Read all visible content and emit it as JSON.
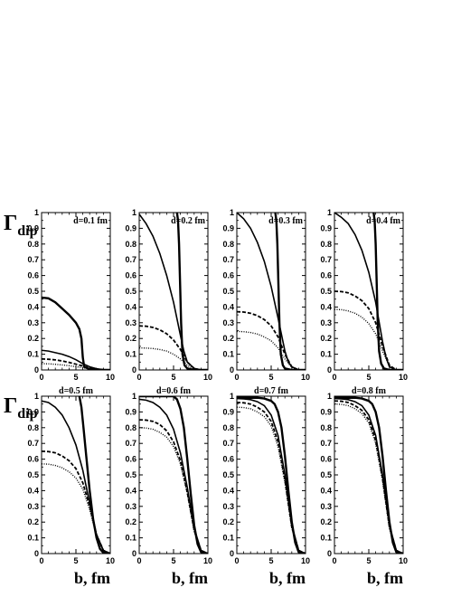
{
  "figure": {
    "ylabel_symbol": "Γ",
    "ylabel_subscript": "dip",
    "xlabel": "b, fm"
  },
  "chart_data": [
    {
      "type": "line",
      "title": "d=0.1 fm",
      "xlim": [
        0,
        10
      ],
      "ylim": [
        0,
        1
      ],
      "xticks": [
        "0",
        "5",
        "10"
      ],
      "yticks": [
        "0",
        "0.1",
        "0.2",
        "0.3",
        "0.4",
        "0.5",
        "0.6",
        "0.7",
        "0.8",
        "0.9",
        "1"
      ],
      "series": [
        {
          "style": "thick-solid",
          "x": [
            0,
            1,
            2,
            3,
            4,
            5,
            5.5,
            5.8,
            6.0,
            6.2,
            7,
            8,
            10
          ],
          "y": [
            0.46,
            0.455,
            0.43,
            0.39,
            0.35,
            0.3,
            0.26,
            0.2,
            0.08,
            0.02,
            0.005,
            0.0,
            0.0
          ]
        },
        {
          "style": "solid",
          "x": [
            0,
            1,
            2,
            3,
            4,
            5,
            6,
            7,
            8,
            9,
            10
          ],
          "y": [
            0.125,
            0.12,
            0.11,
            0.1,
            0.085,
            0.065,
            0.04,
            0.02,
            0.008,
            0.002,
            0.0
          ]
        },
        {
          "style": "dashed",
          "x": [
            0,
            1,
            2,
            3,
            4,
            5,
            6,
            7,
            8,
            9,
            10
          ],
          "y": [
            0.07,
            0.068,
            0.064,
            0.057,
            0.048,
            0.037,
            0.025,
            0.013,
            0.005,
            0.001,
            0.0
          ]
        },
        {
          "style": "dotted",
          "x": [
            0,
            1,
            2,
            3,
            4,
            5,
            6,
            7,
            8,
            9,
            10
          ],
          "y": [
            0.04,
            0.039,
            0.036,
            0.032,
            0.027,
            0.021,
            0.014,
            0.008,
            0.003,
            0.001,
            0.0
          ]
        }
      ]
    },
    {
      "type": "line",
      "title": "d=0.2 fm",
      "xlim": [
        0,
        10
      ],
      "ylim": [
        0,
        1
      ],
      "xticks": [
        "0",
        "5",
        "10"
      ],
      "yticks": [
        "0",
        "0.1",
        "0.2",
        "0.3",
        "0.4",
        "0.5",
        "0.6",
        "0.7",
        "0.8",
        "0.9",
        "1"
      ],
      "series": [
        {
          "style": "thick-solid",
          "x": [
            5.5,
            5.65,
            5.8,
            5.95,
            6.1,
            6.3,
            6.6,
            7,
            8,
            10
          ],
          "y": [
            1.0,
            0.95,
            0.8,
            0.55,
            0.3,
            0.1,
            0.03,
            0.01,
            0.0,
            0.0
          ]
        },
        {
          "style": "solid",
          "x": [
            0,
            1,
            2,
            3,
            4,
            5,
            6,
            6.5,
            7,
            8,
            9,
            10
          ],
          "y": [
            0.99,
            0.93,
            0.85,
            0.74,
            0.6,
            0.43,
            0.22,
            0.12,
            0.05,
            0.01,
            0.0,
            0.0
          ]
        },
        {
          "style": "dashed",
          "x": [
            0,
            1,
            2,
            3,
            4,
            5,
            6,
            7,
            8,
            9,
            10
          ],
          "y": [
            0.28,
            0.278,
            0.27,
            0.255,
            0.23,
            0.19,
            0.13,
            0.05,
            0.01,
            0.0,
            0.0
          ]
        },
        {
          "style": "dotted",
          "x": [
            0,
            1,
            2,
            3,
            4,
            5,
            6,
            7,
            8,
            9,
            10
          ],
          "y": [
            0.14,
            0.139,
            0.136,
            0.13,
            0.12,
            0.1,
            0.07,
            0.03,
            0.005,
            0.0,
            0.0
          ]
        }
      ]
    },
    {
      "type": "line",
      "title": "d=0.3 fm",
      "xlim": [
        0,
        10
      ],
      "ylim": [
        0,
        1
      ],
      "xticks": [
        "0",
        "5",
        "10"
      ],
      "yticks": [
        "0",
        "0.1",
        "0.2",
        "0.3",
        "0.4",
        "0.5",
        "0.6",
        "0.7",
        "0.8",
        "0.9",
        "1"
      ],
      "series": [
        {
          "style": "thick-solid",
          "x": [
            5.6,
            5.75,
            5.9,
            6.05,
            6.2,
            6.4,
            6.7,
            7,
            8,
            10
          ],
          "y": [
            1.0,
            0.95,
            0.8,
            0.55,
            0.3,
            0.1,
            0.03,
            0.01,
            0.0,
            0.0
          ]
        },
        {
          "style": "solid",
          "x": [
            0,
            1,
            2,
            3,
            4,
            5,
            6,
            7,
            7.5,
            8,
            9,
            10
          ],
          "y": [
            1.0,
            0.96,
            0.9,
            0.81,
            0.69,
            0.53,
            0.33,
            0.12,
            0.05,
            0.02,
            0.0,
            0.0
          ]
        },
        {
          "style": "dashed",
          "x": [
            0,
            1,
            2,
            3,
            4,
            5,
            6,
            7,
            8,
            9,
            10
          ],
          "y": [
            0.37,
            0.368,
            0.36,
            0.345,
            0.32,
            0.28,
            0.21,
            0.1,
            0.02,
            0.0,
            0.0
          ]
        },
        {
          "style": "dotted",
          "x": [
            0,
            1,
            2,
            3,
            4,
            5,
            6,
            7,
            8,
            9,
            10
          ],
          "y": [
            0.245,
            0.243,
            0.238,
            0.228,
            0.21,
            0.185,
            0.14,
            0.07,
            0.015,
            0.0,
            0.0
          ]
        }
      ]
    },
    {
      "type": "line",
      "title": "d=0.4 fm",
      "xlim": [
        0,
        10
      ],
      "ylim": [
        0,
        1
      ],
      "xticks": [
        "0",
        "5",
        "10"
      ],
      "yticks": [
        "0",
        "0.1",
        "0.2",
        "0.3",
        "0.4",
        "0.5",
        "0.6",
        "0.7",
        "0.8",
        "0.9",
        "1"
      ],
      "series": [
        {
          "style": "thick-solid",
          "x": [
            5.7,
            5.85,
            6.0,
            6.15,
            6.3,
            6.5,
            6.8,
            7.2,
            8,
            10
          ],
          "y": [
            1.0,
            0.95,
            0.8,
            0.55,
            0.3,
            0.12,
            0.04,
            0.01,
            0.0,
            0.0
          ]
        },
        {
          "style": "solid",
          "x": [
            0,
            1,
            2,
            3,
            4,
            5,
            6,
            7,
            7.5,
            8,
            9,
            10
          ],
          "y": [
            1.0,
            0.97,
            0.93,
            0.86,
            0.76,
            0.62,
            0.43,
            0.18,
            0.08,
            0.02,
            0.0,
            0.0
          ]
        },
        {
          "style": "dashed",
          "x": [
            0,
            1,
            2,
            3,
            4,
            5,
            6,
            7,
            8,
            9,
            10
          ],
          "y": [
            0.5,
            0.498,
            0.49,
            0.47,
            0.44,
            0.39,
            0.3,
            0.15,
            0.03,
            0.0,
            0.0
          ]
        },
        {
          "style": "dotted",
          "x": [
            0,
            1,
            2,
            3,
            4,
            5,
            6,
            7,
            8,
            9,
            10
          ],
          "y": [
            0.385,
            0.383,
            0.375,
            0.36,
            0.335,
            0.295,
            0.23,
            0.12,
            0.025,
            0.0,
            0.0
          ]
        }
      ]
    },
    {
      "type": "line",
      "title": "d=0.5 fm",
      "xlim": [
        0,
        10
      ],
      "ylim": [
        0,
        1
      ],
      "xticks": [
        "0",
        "5",
        "10"
      ],
      "yticks": [
        "0",
        "0.1",
        "0.2",
        "0.3",
        "0.4",
        "0.5",
        "0.6",
        "0.7",
        "0.8",
        "0.9",
        "1"
      ],
      "series": [
        {
          "style": "thick-solid",
          "x": [
            5.5,
            5.8,
            6.1,
            6.5,
            7.0,
            7.5,
            8.0,
            8.5,
            9.0,
            10
          ],
          "y": [
            1.0,
            0.93,
            0.8,
            0.62,
            0.4,
            0.22,
            0.1,
            0.03,
            0.005,
            0.0
          ]
        },
        {
          "style": "solid",
          "x": [
            0,
            1,
            2,
            3,
            4,
            5,
            6,
            7,
            8,
            9,
            10
          ],
          "y": [
            0.97,
            0.96,
            0.93,
            0.88,
            0.8,
            0.69,
            0.53,
            0.32,
            0.12,
            0.02,
            0.0
          ]
        },
        {
          "style": "dashed",
          "x": [
            0,
            1,
            2,
            3,
            4,
            5,
            6,
            7,
            8,
            9,
            10
          ],
          "y": [
            0.65,
            0.648,
            0.64,
            0.62,
            0.59,
            0.54,
            0.45,
            0.3,
            0.12,
            0.02,
            0.0
          ]
        },
        {
          "style": "dotted",
          "x": [
            0,
            1,
            2,
            3,
            4,
            5,
            6,
            7,
            8,
            9,
            10
          ],
          "y": [
            0.57,
            0.568,
            0.56,
            0.545,
            0.52,
            0.48,
            0.41,
            0.28,
            0.11,
            0.015,
            0.0
          ]
        }
      ]
    },
    {
      "type": "line",
      "title": "d=0.6 fm",
      "xlim": [
        0,
        10
      ],
      "ylim": [
        0,
        1
      ],
      "xticks": [
        "0",
        "5",
        "10"
      ],
      "yticks": [
        "0",
        "0.1",
        "0.2",
        "0.3",
        "0.4",
        "0.5",
        "0.6",
        "0.7",
        "0.8",
        "0.9",
        "1"
      ],
      "series": [
        {
          "style": "thick-solid",
          "x": [
            0,
            1,
            2,
            3,
            4,
            5,
            5.5,
            6,
            6.5,
            7,
            7.5,
            8,
            8.5,
            9,
            10
          ],
          "y": [
            1.0,
            1.0,
            1.0,
            1.0,
            1.0,
            1.0,
            0.98,
            0.92,
            0.8,
            0.6,
            0.38,
            0.18,
            0.06,
            0.01,
            0.0
          ]
        },
        {
          "style": "solid",
          "x": [
            0,
            1,
            2,
            3,
            4,
            5,
            6,
            7,
            8,
            9,
            10
          ],
          "y": [
            0.98,
            0.975,
            0.96,
            0.93,
            0.88,
            0.79,
            0.64,
            0.42,
            0.16,
            0.02,
            0.0
          ]
        },
        {
          "style": "dashed",
          "x": [
            0,
            1,
            2,
            3,
            4,
            5,
            6,
            7,
            8,
            9,
            10
          ],
          "y": [
            0.85,
            0.848,
            0.84,
            0.82,
            0.78,
            0.71,
            0.59,
            0.39,
            0.15,
            0.02,
            0.0
          ]
        },
        {
          "style": "dotted",
          "x": [
            0,
            1,
            2,
            3,
            4,
            5,
            6,
            7,
            8,
            9,
            10
          ],
          "y": [
            0.8,
            0.798,
            0.79,
            0.77,
            0.74,
            0.68,
            0.57,
            0.38,
            0.14,
            0.02,
            0.0
          ]
        }
      ]
    },
    {
      "type": "line",
      "title": "d=0.7 fm",
      "xlim": [
        0,
        10
      ],
      "ylim": [
        0,
        1
      ],
      "xticks": [
        "0",
        "5",
        "10"
      ],
      "yticks": [
        "0",
        "0.1",
        "0.2",
        "0.3",
        "0.4",
        "0.5",
        "0.6",
        "0.7",
        "0.8",
        "0.9",
        "1"
      ],
      "series": [
        {
          "style": "thick-solid",
          "x": [
            0,
            1,
            2,
            3,
            4,
            5,
            5.5,
            6,
            6.5,
            7,
            7.5,
            8,
            8.5,
            9,
            10
          ],
          "y": [
            0.99,
            0.99,
            0.99,
            0.99,
            0.985,
            0.97,
            0.95,
            0.9,
            0.8,
            0.62,
            0.4,
            0.2,
            0.07,
            0.01,
            0.0
          ]
        },
        {
          "style": "solid",
          "x": [
            0,
            1,
            2,
            3,
            4,
            5,
            6,
            7,
            8,
            9,
            10
          ],
          "y": [
            0.985,
            0.983,
            0.978,
            0.965,
            0.94,
            0.88,
            0.75,
            0.5,
            0.18,
            0.02,
            0.0
          ]
        },
        {
          "style": "dashed",
          "x": [
            0,
            1,
            2,
            3,
            4,
            5,
            6,
            7,
            8,
            9,
            10
          ],
          "y": [
            0.96,
            0.958,
            0.95,
            0.93,
            0.9,
            0.84,
            0.71,
            0.47,
            0.17,
            0.02,
            0.0
          ]
        },
        {
          "style": "dotted",
          "x": [
            0,
            1,
            2,
            3,
            4,
            5,
            6,
            7,
            8,
            9,
            10
          ],
          "y": [
            0.93,
            0.928,
            0.92,
            0.9,
            0.87,
            0.81,
            0.68,
            0.45,
            0.16,
            0.02,
            0.0
          ]
        }
      ]
    },
    {
      "type": "line",
      "title": "d=0.8 fm",
      "xlim": [
        0,
        10
      ],
      "ylim": [
        0,
        1
      ],
      "xticks": [
        "0",
        "5",
        "10"
      ],
      "yticks": [
        "0",
        "0.1",
        "0.2",
        "0.3",
        "0.4",
        "0.5",
        "0.6",
        "0.7",
        "0.8",
        "0.9",
        "1"
      ],
      "series": [
        {
          "style": "thick-solid",
          "x": [
            0,
            1,
            2,
            3,
            4,
            5,
            5.5,
            6,
            6.5,
            7,
            7.5,
            8,
            8.5,
            9,
            10
          ],
          "y": [
            0.99,
            0.99,
            0.99,
            0.99,
            0.985,
            0.97,
            0.95,
            0.9,
            0.8,
            0.62,
            0.4,
            0.2,
            0.07,
            0.01,
            0.0
          ]
        },
        {
          "style": "solid",
          "x": [
            0,
            1,
            2,
            3,
            4,
            5,
            6,
            7,
            8,
            9,
            10
          ],
          "y": [
            0.985,
            0.983,
            0.978,
            0.965,
            0.94,
            0.88,
            0.75,
            0.5,
            0.18,
            0.02,
            0.0
          ]
        },
        {
          "style": "dashed",
          "x": [
            0,
            1,
            2,
            3,
            4,
            5,
            6,
            7,
            8,
            9,
            10
          ],
          "y": [
            0.97,
            0.968,
            0.96,
            0.94,
            0.91,
            0.85,
            0.72,
            0.48,
            0.17,
            0.02,
            0.0
          ]
        },
        {
          "style": "dotted",
          "x": [
            0,
            1,
            2,
            3,
            4,
            5,
            6,
            7,
            8,
            9,
            10
          ],
          "y": [
            0.95,
            0.948,
            0.94,
            0.92,
            0.89,
            0.83,
            0.7,
            0.46,
            0.16,
            0.02,
            0.0
          ]
        }
      ]
    }
  ]
}
